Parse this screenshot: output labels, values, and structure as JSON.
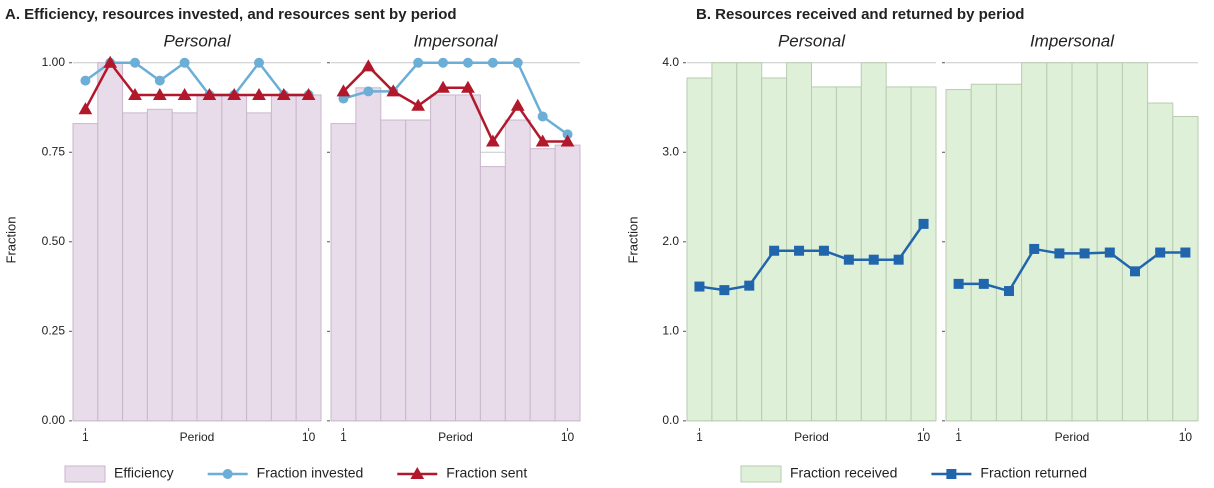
{
  "chart_data": [
    {
      "type": "bar-line",
      "title": "A. Efficiency, resources invested, and resources sent by period",
      "ylabel": "Fraction",
      "xlabel": "Period",
      "xlim": [
        0.5,
        10.5
      ],
      "xticks": [
        1,
        10
      ],
      "ylim": [
        -0.02,
        1.03
      ],
      "yticks": [
        {
          "value": 0,
          "label": "0.00"
        },
        {
          "value": 0.25,
          "label": "0.25"
        },
        {
          "value": 0.5,
          "label": "0.50"
        },
        {
          "value": 0.75,
          "label": "0.75"
        },
        {
          "value": 1,
          "label": "1.00"
        }
      ],
      "grid": true,
      "panels": [
        {
          "subtitle": "Personal",
          "x": [
            1,
            2,
            3,
            4,
            5,
            6,
            7,
            8,
            9,
            10
          ],
          "series": [
            {
              "name": "Efficiency",
              "type": "bar",
              "color": "#e8dcea",
              "values": [
                0.83,
                1.0,
                0.86,
                0.87,
                0.86,
                0.91,
                0.91,
                0.86,
                0.91,
                0.91
              ]
            },
            {
              "name": "Fraction invested",
              "type": "line",
              "marker": "circle",
              "color": "#6baed6",
              "values": [
                0.95,
                1.0,
                1.0,
                0.95,
                1.0,
                0.91,
                0.91,
                1.0,
                0.91,
                0.91
              ]
            },
            {
              "name": "Fraction sent",
              "type": "line",
              "marker": "triangle",
              "color": "#b2182b",
              "values": [
                0.87,
                1.0,
                0.91,
                0.91,
                0.91,
                0.91,
                0.91,
                0.91,
                0.91,
                0.91
              ]
            }
          ]
        },
        {
          "subtitle": "Impersonal",
          "x": [
            1,
            2,
            3,
            4,
            5,
            6,
            7,
            8,
            9,
            10
          ],
          "series": [
            {
              "name": "Efficiency",
              "type": "bar",
              "color": "#e8dcea",
              "values": [
                0.83,
                0.93,
                0.84,
                0.84,
                0.91,
                0.91,
                0.71,
                0.84,
                0.76,
                0.77
              ]
            },
            {
              "name": "Fraction invested",
              "type": "line",
              "marker": "circle",
              "color": "#6baed6",
              "values": [
                0.9,
                0.92,
                0.92,
                1.0,
                1.0,
                1.0,
                1.0,
                1.0,
                0.85,
                0.8
              ]
            },
            {
              "name": "Fraction sent",
              "type": "line",
              "marker": "triangle",
              "color": "#b2182b",
              "values": [
                0.92,
                0.99,
                0.92,
                0.88,
                0.93,
                0.93,
                0.78,
                0.88,
                0.78,
                0.78
              ]
            }
          ]
        }
      ]
    },
    {
      "type": "bar-line",
      "title": "B. Resources received and returned by period",
      "ylabel": "Fraction",
      "xlabel": "Period",
      "xlim": [
        0.5,
        10.5
      ],
      "xticks": [
        1,
        10
      ],
      "ylim": [
        -0.08,
        4.12
      ],
      "yticks": [
        {
          "value": 0,
          "label": "0.0"
        },
        {
          "value": 1,
          "label": "1.0"
        },
        {
          "value": 2,
          "label": "2.0"
        },
        {
          "value": 3,
          "label": "3.0"
        },
        {
          "value": 4,
          "label": "4.0"
        }
      ],
      "grid": true,
      "panels": [
        {
          "subtitle": "Personal",
          "x": [
            1,
            2,
            3,
            4,
            5,
            6,
            7,
            8,
            9,
            10
          ],
          "series": [
            {
              "name": "Fraction received",
              "type": "bar",
              "color": "#dff0d8",
              "values": [
                3.83,
                4.0,
                4.0,
                3.83,
                4.0,
                3.73,
                3.73,
                4.0,
                3.73,
                3.73
              ]
            },
            {
              "name": "Fraction returned",
              "type": "line",
              "marker": "square",
              "color": "#2166ac",
              "values": [
                1.5,
                1.46,
                1.51,
                1.9,
                1.9,
                1.9,
                1.8,
                1.8,
                1.8,
                2.2
              ]
            }
          ]
        },
        {
          "subtitle": "Impersonal",
          "x": [
            1,
            2,
            3,
            4,
            5,
            6,
            7,
            8,
            9,
            10
          ],
          "series": [
            {
              "name": "Fraction received",
              "type": "bar",
              "color": "#dff0d8",
              "values": [
                3.7,
                3.76,
                3.76,
                4.0,
                4.0,
                4.0,
                4.0,
                4.0,
                3.55,
                3.4
              ]
            },
            {
              "name": "Fraction returned",
              "type": "line",
              "marker": "square",
              "color": "#2166ac",
              "values": [
                1.53,
                1.53,
                1.45,
                1.92,
                1.87,
                1.87,
                1.88,
                1.67,
                1.88,
                1.88
              ]
            }
          ]
        }
      ]
    }
  ]
}
